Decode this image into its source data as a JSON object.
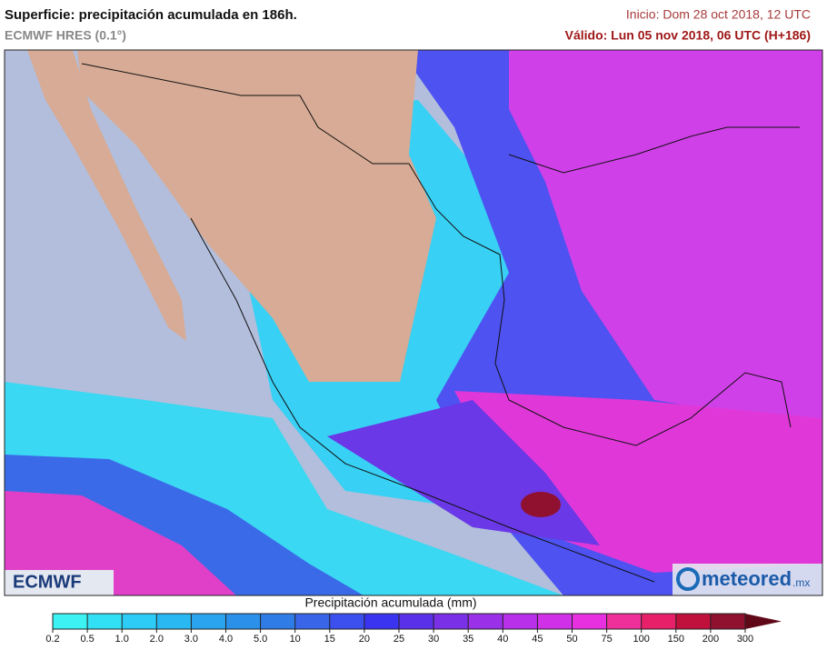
{
  "header": {
    "title": "Superficie: precipitación acumulada en 186h.",
    "subtitle": "ECMWF HRES (0.1°)",
    "init": "Inicio: Dom 28 oct 2018, 12 UTC",
    "valid": "Válido: Lun 05 nov 2018, 06 UTC (H+186)"
  },
  "map": {
    "logo_left": "ECMWF",
    "logo_right": "meteored",
    "logo_right_suffix": ".mx"
  },
  "colorbar": {
    "title": "Precipitación acumulada (mm)",
    "labels": [
      "0.2",
      "0.5",
      "1.0",
      "2.0",
      "3.0",
      "4.0",
      "5.0",
      "10",
      "15",
      "20",
      "25",
      "30",
      "35",
      "40",
      "45",
      "50",
      "75",
      "100",
      "150",
      "200",
      "300"
    ],
    "colors": [
      "#3cf2f2",
      "#32e0f6",
      "#2cccf6",
      "#2ab8f2",
      "#2aa4ee",
      "#2a90ea",
      "#2f7ce6",
      "#3966e8",
      "#3c50f0",
      "#3a34f0",
      "#5a30e8",
      "#7a30e6",
      "#9a30e8",
      "#b830ea",
      "#d030e8",
      "#e830e0",
      "#f0309a",
      "#e8206a",
      "#c0103c",
      "#901030",
      "#600818"
    ]
  }
}
